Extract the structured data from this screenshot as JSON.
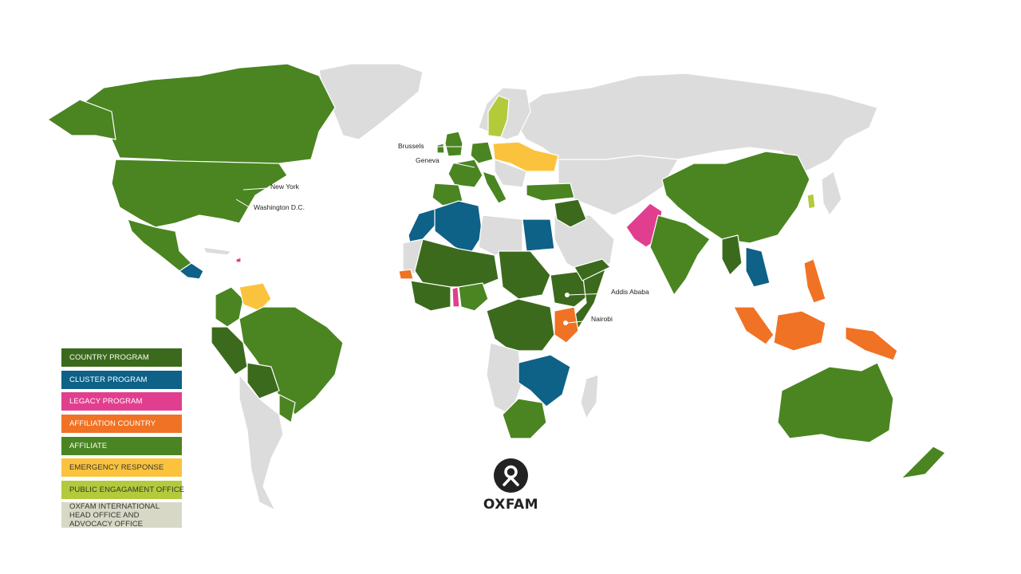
{
  "colors": {
    "country_program": "#3c6a1c",
    "cluster_program": "#0e6187",
    "legacy_program": "#e23e8f",
    "affiliation_country": "#f07224",
    "affiliate": "#4a8521",
    "emergency_response": "#fbc33d",
    "public_engagement_office": "#b3cb3b",
    "head_office": "#d8d8c6",
    "land_default": "#dcdcdc"
  },
  "legend": [
    {
      "key": "country_program",
      "label": "COUNTRY PROGRAM",
      "color": "#3c6a1c"
    },
    {
      "key": "cluster_program",
      "label": "CLUSTER PROGRAM",
      "color": "#0e6187"
    },
    {
      "key": "legacy_program",
      "label": "LEGACY PROGRAM",
      "color": "#e23e8f"
    },
    {
      "key": "affiliation_country",
      "label": "AFFILIATION COUNTRY",
      "color": "#f07224"
    },
    {
      "key": "affiliate",
      "label": "AFFILIATE",
      "color": "#4a8521"
    },
    {
      "key": "emergency_response",
      "label": "EMERGENCY RESPONSE",
      "color": "#fbc33d"
    },
    {
      "key": "public_engagement_office",
      "label": "PUBLIC ENGAGAMENT OFFICE",
      "color": "#b3cb3b"
    },
    {
      "key": "head_office",
      "label": "OXFAM INTERNATIONAL HEAD OFFICE AND ADVOCACY OFFICE",
      "color": "#d8d8c6"
    }
  ],
  "offices": {
    "brussels": "Brussels",
    "geneva": "Geneva",
    "new_york": "New York",
    "washington": "Washington D.C.",
    "addis_ababa": "Addis Ababa",
    "nairobi": "Nairobi"
  },
  "logo": {
    "text": "OXFAM"
  }
}
